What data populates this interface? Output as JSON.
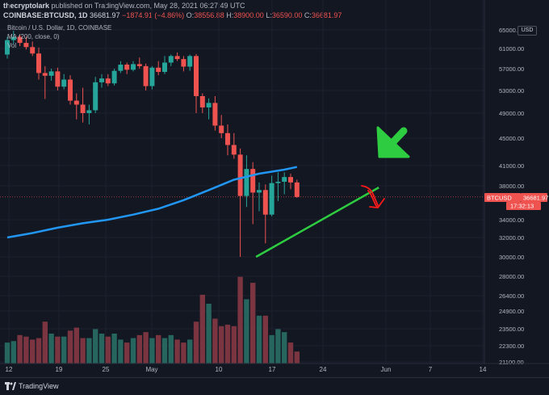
{
  "header": {
    "publisher": "thecryptolark",
    "published_text": "published on TradingView.com, May 28, 2021 06:27:49 UTC",
    "symbol": "COINBASE:BTCUSD, 1D",
    "price": "36681.97",
    "change": "−1874.91 (−4.86%)",
    "o_label": "O:",
    "o_value": "38556.88",
    "h_label": "H:",
    "h_value": "38900.00",
    "l_label": "L:",
    "l_value": "36590.00",
    "c_label": "C:",
    "c_value": "36681.97"
  },
  "legend": {
    "title": "Bitcoin / U.S. Dollar, 1D, COINBASE",
    "ma": "MA (200, close, 0)",
    "vol": "Vol"
  },
  "currency_badge": "USD",
  "price_tag": {
    "symbol": "BTCUSD",
    "value": "36681.97",
    "countdown": "17:32:13"
  },
  "footer": {
    "brand": "TradingView"
  },
  "colors": {
    "up": "#26a69a",
    "down": "#ef5350",
    "up_vol": "#26665f",
    "down_vol": "#7a3540",
    "ma": "#2196f3",
    "annotation_green": "#2ecc40",
    "annotation_red": "#ff1a1a"
  },
  "chart_data": {
    "type": "candlestick",
    "x_ticks": [
      "12",
      "19",
      "25",
      "May",
      "10",
      "17",
      "24",
      "Jun",
      "7",
      "14"
    ],
    "price_ticks": [
      "65000.00",
      "61000.00",
      "57000.00",
      "53000.00",
      "49000.00",
      "45000.00",
      "41000.00",
      "38000.00",
      "34000.00",
      "32000.00",
      "30000.00",
      "28000.00",
      "26400.00",
      "24900.00",
      "23500.00",
      "22300.00",
      "21100.00"
    ],
    "ohlc": [
      [
        59800,
        63500,
        59000,
        62800
      ],
      [
        62800,
        64800,
        62000,
        63500
      ],
      [
        63500,
        64000,
        61500,
        62200
      ],
      [
        62200,
        63500,
        60800,
        61300
      ],
      [
        61300,
        62500,
        59500,
        60000
      ],
      [
        60000,
        61200,
        55000,
        56200
      ],
      [
        56200,
        57500,
        51500,
        55700
      ],
      [
        55700,
        57000,
        54800,
        56500
      ],
      [
        56500,
        57200,
        53000,
        53700
      ],
      [
        53700,
        56000,
        53200,
        55000
      ],
      [
        55000,
        55800,
        50500,
        51200
      ],
      [
        51200,
        52500,
        48000,
        50500
      ],
      [
        50500,
        53500,
        47500,
        49000
      ],
      [
        49000,
        50500,
        47200,
        49500
      ],
      [
        49500,
        55500,
        49000,
        54500
      ],
      [
        54500,
        56000,
        53500,
        55200
      ],
      [
        55200,
        56000,
        53800,
        54300
      ],
      [
        54300,
        57000,
        53900,
        56600
      ],
      [
        56600,
        58500,
        56200,
        57800
      ],
      [
        57800,
        58200,
        56000,
        56800
      ],
      [
        56800,
        58500,
        56500,
        57900
      ],
      [
        57900,
        59200,
        57000,
        57500
      ],
      [
        57500,
        58000,
        53000,
        53800
      ],
      [
        53800,
        57500,
        53200,
        57200
      ],
      [
        57200,
        58500,
        55800,
        56400
      ],
      [
        56400,
        59500,
        56000,
        58200
      ],
      [
        58200,
        59800,
        57500,
        59500
      ],
      [
        59500,
        60200,
        58500,
        58900
      ],
      [
        58900,
        59500,
        56500,
        57400
      ],
      [
        57400,
        59800,
        56600,
        59500
      ],
      [
        59500,
        59900,
        49000,
        52000
      ],
      [
        52000,
        52500,
        49000,
        50000
      ],
      [
        50000,
        51600,
        48000,
        50800
      ],
      [
        50800,
        52000,
        46200,
        47000
      ],
      [
        47000,
        48700,
        45000,
        45800
      ],
      [
        45800,
        47200,
        42500,
        44000
      ],
      [
        44000,
        45800,
        42000,
        42600
      ],
      [
        42600,
        43500,
        30000,
        36800
      ],
      [
        36800,
        42500,
        35500,
        40500
      ],
      [
        40500,
        41500,
        33500,
        37200
      ],
      [
        37200,
        38500,
        35000,
        37500
      ],
      [
        37500,
        38200,
        31400,
        34600
      ],
      [
        34600,
        39500,
        34400,
        38400
      ],
      [
        38400,
        40000,
        36200,
        38600
      ],
      [
        38600,
        40000,
        37000,
        39300
      ],
      [
        39300,
        39800,
        37600,
        38500
      ],
      [
        38500,
        38900,
        36590,
        36682
      ]
    ],
    "volume": [
      14,
      15,
      19,
      18,
      16,
      17,
      28,
      20,
      18,
      18,
      22,
      24,
      17,
      17,
      23,
      20,
      18,
      20,
      16,
      14,
      17,
      19,
      21,
      17,
      19,
      17,
      19,
      16,
      14,
      16,
      28,
      46,
      40,
      30,
      25,
      26,
      25,
      58,
      43,
      54,
      32,
      32,
      19,
      23,
      21,
      14,
      8
    ],
    "ma200": [
      [
        0,
        32000
      ],
      [
        4,
        32500
      ],
      [
        8,
        33100
      ],
      [
        12,
        33600
      ],
      [
        16,
        34000
      ],
      [
        20,
        34600
      ],
      [
        24,
        35300
      ],
      [
        28,
        36300
      ],
      [
        32,
        37500
      ],
      [
        36,
        38900
      ],
      [
        40,
        39800
      ],
      [
        44,
        40400
      ],
      [
        46,
        40800
      ]
    ],
    "annotations": {
      "support_line": [
        [
          39.5,
          30000
        ],
        [
          59,
          37800
        ]
      ],
      "current_price_line": 36682
    }
  }
}
